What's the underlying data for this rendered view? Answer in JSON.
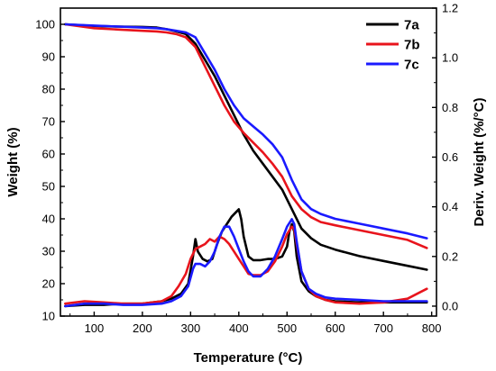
{
  "chart_data": {
    "type": "line",
    "title": "",
    "xlabel": "Temperature (°C)",
    "ylabel": "Weight (%)",
    "y2label": "Deriv. Weight (%/°C)",
    "xlim": [
      30,
      810
    ],
    "ylim": [
      10,
      105
    ],
    "y2lim": [
      -0.04,
      1.2
    ],
    "x_ticks": [
      100,
      200,
      300,
      400,
      500,
      600,
      700,
      800
    ],
    "y_ticks": [
      10,
      20,
      30,
      40,
      50,
      60,
      70,
      80,
      90,
      100
    ],
    "y2_ticks": [
      0.0,
      0.2,
      0.4,
      0.6,
      0.8,
      1.0,
      1.2
    ],
    "x_tick_labels": [
      "100",
      "200",
      "300",
      "400",
      "500",
      "600",
      "700",
      "800"
    ],
    "y_tick_labels": [
      "10",
      "20",
      "30",
      "40",
      "50",
      "60",
      "70",
      "80",
      "90",
      "100"
    ],
    "y2_tick_labels": [
      "0.0",
      "0.2",
      "0.4",
      "0.6",
      "0.8",
      "1.0",
      "1.2"
    ],
    "legend_position": "top-right",
    "grid": false,
    "series": [
      {
        "name": "7a",
        "color": "#000000",
        "axis": "left",
        "kind": "weight",
        "x": [
          40,
          100,
          150,
          200,
          230,
          250,
          270,
          290,
          310,
          330,
          350,
          370,
          390,
          410,
          430,
          450,
          470,
          490,
          510,
          530,
          550,
          570,
          600,
          650,
          700,
          750,
          790
        ],
        "y": [
          100,
          99.5,
          99.3,
          99.2,
          99,
          98.5,
          97.8,
          97,
          94,
          89,
          84,
          78,
          72,
          66,
          61,
          57,
          53,
          49,
          43,
          37,
          34,
          32,
          30.5,
          28.5,
          27,
          25.5,
          24.3
        ]
      },
      {
        "name": "7b",
        "color": "#e8141c",
        "axis": "left",
        "kind": "weight",
        "x": [
          40,
          100,
          150,
          200,
          230,
          250,
          270,
          290,
          310,
          330,
          350,
          370,
          390,
          410,
          430,
          450,
          470,
          490,
          510,
          530,
          550,
          570,
          600,
          650,
          700,
          750,
          790
        ],
        "y": [
          100,
          98.8,
          98.4,
          98,
          97.8,
          97.5,
          97,
          96,
          93,
          87,
          81,
          75,
          70,
          66.5,
          63.5,
          60.5,
          57,
          53,
          47,
          43,
          40.5,
          39,
          38,
          36.5,
          35,
          33.5,
          31
        ]
      },
      {
        "name": "7c",
        "color": "#1a1aff",
        "axis": "left",
        "kind": "weight",
        "x": [
          40,
          100,
          150,
          200,
          230,
          250,
          270,
          290,
          310,
          330,
          350,
          370,
          390,
          410,
          430,
          450,
          470,
          490,
          510,
          530,
          550,
          570,
          600,
          650,
          700,
          750,
          790
        ],
        "y": [
          100,
          99.6,
          99.3,
          99,
          98.8,
          98.5,
          98,
          97.5,
          96,
          91,
          86,
          80,
          75,
          71,
          68.5,
          66,
          63,
          59,
          52,
          46,
          43,
          41.5,
          40,
          38.5,
          37,
          35.5,
          34
        ]
      },
      {
        "name": "7a",
        "color": "#000000",
        "axis": "right",
        "kind": "derivative",
        "x": [
          40,
          80,
          120,
          160,
          200,
          240,
          260,
          280,
          295,
          305,
          310,
          315,
          325,
          335,
          345,
          355,
          365,
          375,
          385,
          395,
          400,
          405,
          410,
          420,
          430,
          445,
          460,
          475,
          490,
          500,
          505,
          510,
          515,
          520,
          530,
          545,
          560,
          580,
          600,
          650,
          700,
          750,
          790
        ],
        "y": [
          0.0,
          0.005,
          0.005,
          0.01,
          0.01,
          0.02,
          0.03,
          0.05,
          0.09,
          0.2,
          0.27,
          0.22,
          0.19,
          0.18,
          0.19,
          0.25,
          0.3,
          0.33,
          0.36,
          0.38,
          0.39,
          0.35,
          0.28,
          0.2,
          0.185,
          0.185,
          0.19,
          0.19,
          0.2,
          0.24,
          0.3,
          0.33,
          0.3,
          0.2,
          0.1,
          0.06,
          0.04,
          0.025,
          0.02,
          0.015,
          0.015,
          0.015,
          0.015
        ]
      },
      {
        "name": "7b",
        "color": "#e8141c",
        "axis": "right",
        "kind": "derivative",
        "x": [
          40,
          80,
          120,
          160,
          200,
          240,
          260,
          275,
          290,
          300,
          310,
          320,
          330,
          340,
          350,
          360,
          370,
          380,
          390,
          400,
          410,
          420,
          430,
          445,
          460,
          475,
          490,
          500,
          510,
          515,
          520,
          530,
          545,
          560,
          580,
          600,
          650,
          700,
          750,
          790
        ],
        "y": [
          0.01,
          0.02,
          0.015,
          0.01,
          0.01,
          0.02,
          0.04,
          0.08,
          0.13,
          0.19,
          0.23,
          0.24,
          0.25,
          0.27,
          0.26,
          0.28,
          0.27,
          0.25,
          0.22,
          0.19,
          0.16,
          0.13,
          0.125,
          0.125,
          0.14,
          0.18,
          0.24,
          0.29,
          0.32,
          0.31,
          0.25,
          0.14,
          0.07,
          0.04,
          0.025,
          0.015,
          0.01,
          0.015,
          0.03,
          0.07
        ]
      },
      {
        "name": "7c",
        "color": "#1a1aff",
        "axis": "right",
        "kind": "derivative",
        "x": [
          40,
          80,
          120,
          160,
          200,
          240,
          260,
          280,
          295,
          305,
          310,
          320,
          330,
          340,
          350,
          360,
          370,
          380,
          390,
          400,
          410,
          420,
          430,
          445,
          460,
          475,
          490,
          500,
          510,
          515,
          520,
          530,
          545,
          560,
          580,
          600,
          650,
          700,
          750,
          790
        ],
        "y": [
          0.0,
          0.01,
          0.01,
          0.005,
          0.005,
          0.01,
          0.02,
          0.04,
          0.08,
          0.15,
          0.17,
          0.17,
          0.16,
          0.18,
          0.22,
          0.28,
          0.32,
          0.32,
          0.28,
          0.23,
          0.18,
          0.14,
          0.12,
          0.12,
          0.15,
          0.2,
          0.27,
          0.32,
          0.35,
          0.33,
          0.26,
          0.14,
          0.07,
          0.05,
          0.035,
          0.03,
          0.025,
          0.02,
          0.02,
          0.02
        ]
      }
    ]
  }
}
